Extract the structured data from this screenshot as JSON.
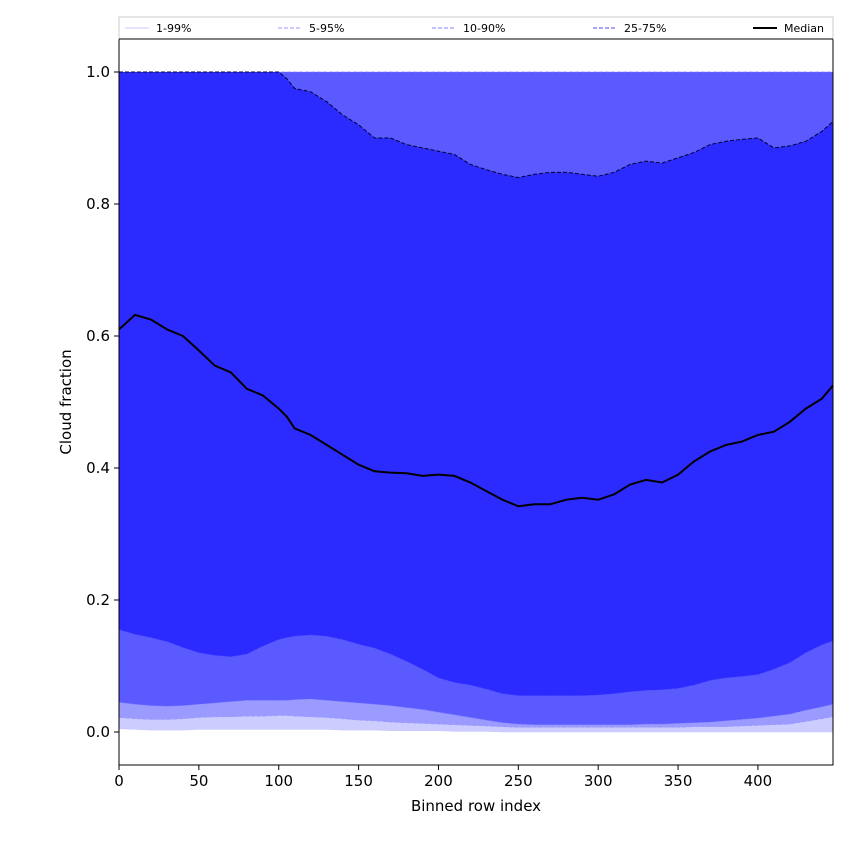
{
  "chart_data": {
    "type": "area",
    "xlabel": "Binned row index",
    "ylabel": "Cloud fraction",
    "xlim": [
      0,
      447
    ],
    "ylim": [
      -0.05,
      1.05
    ],
    "xticks": [
      0,
      50,
      100,
      150,
      200,
      250,
      300,
      350,
      400
    ],
    "yticks": [
      0.0,
      0.2,
      0.4,
      0.6,
      0.8,
      1.0
    ],
    "xtick_labels": [
      "0",
      "50",
      "100",
      "150",
      "200",
      "250",
      "300",
      "350",
      "400"
    ],
    "ytick_labels": [
      "0.0",
      "0.2",
      "0.4",
      "0.6",
      "0.8",
      "1.0"
    ],
    "grid": false,
    "legend_position": "top",
    "x": [
      0,
      10,
      20,
      30,
      40,
      50,
      60,
      70,
      80,
      90,
      100,
      105,
      110,
      120,
      130,
      140,
      150,
      160,
      170,
      180,
      190,
      200,
      210,
      220,
      230,
      240,
      250,
      260,
      270,
      280,
      290,
      300,
      310,
      320,
      330,
      340,
      350,
      360,
      370,
      380,
      390,
      400,
      410,
      420,
      430,
      440,
      447
    ],
    "bands": [
      {
        "name": "1-99%",
        "color": "#ccccff",
        "lower": [
          0.005,
          0.004,
          0.003,
          0.003,
          0.003,
          0.004,
          0.004,
          0.004,
          0.004,
          0.004,
          0.004,
          0.004,
          0.004,
          0.004,
          0.004,
          0.003,
          0.003,
          0.003,
          0.002,
          0.002,
          0.002,
          0.002,
          0.001,
          0.001,
          0.001,
          0.0,
          0.0,
          0.0,
          0.0,
          0.0,
          0.0,
          0.0,
          0.0,
          0.0,
          0.0,
          0.0,
          0.0,
          0.0,
          0.0,
          0.0,
          0.0,
          0.0,
          0.0,
          0.0,
          0.0,
          0.0,
          0.0
        ],
        "upper": [
          1.0,
          1.0,
          1.0,
          1.0,
          1.0,
          1.0,
          1.0,
          1.0,
          1.0,
          1.0,
          1.0,
          1.0,
          1.0,
          1.0,
          1.0,
          1.0,
          1.0,
          1.0,
          1.0,
          1.0,
          1.0,
          1.0,
          1.0,
          1.0,
          1.0,
          1.0,
          1.0,
          1.0,
          1.0,
          1.0,
          1.0,
          1.0,
          1.0,
          1.0,
          1.0,
          1.0,
          1.0,
          1.0,
          1.0,
          1.0,
          1.0,
          1.0,
          1.0,
          1.0,
          1.0,
          1.0,
          1.0
        ]
      },
      {
        "name": "5-95%",
        "color": "#9a9aff",
        "lower": [
          0.022,
          0.02,
          0.019,
          0.019,
          0.02,
          0.022,
          0.023,
          0.023,
          0.024,
          0.024,
          0.025,
          0.025,
          0.024,
          0.023,
          0.022,
          0.02,
          0.018,
          0.017,
          0.015,
          0.014,
          0.013,
          0.012,
          0.011,
          0.01,
          0.009,
          0.008,
          0.007,
          0.007,
          0.007,
          0.007,
          0.007,
          0.007,
          0.007,
          0.007,
          0.007,
          0.007,
          0.007,
          0.008,
          0.008,
          0.008,
          0.009,
          0.01,
          0.011,
          0.012,
          0.016,
          0.02,
          0.023
        ],
        "upper": [
          1.0,
          1.0,
          1.0,
          1.0,
          1.0,
          1.0,
          1.0,
          1.0,
          1.0,
          1.0,
          1.0,
          1.0,
          1.0,
          1.0,
          1.0,
          1.0,
          1.0,
          1.0,
          1.0,
          1.0,
          1.0,
          1.0,
          1.0,
          1.0,
          1.0,
          1.0,
          1.0,
          1.0,
          1.0,
          1.0,
          1.0,
          1.0,
          1.0,
          1.0,
          1.0,
          1.0,
          1.0,
          1.0,
          1.0,
          1.0,
          1.0,
          1.0,
          1.0,
          1.0,
          1.0,
          1.0,
          1.0
        ]
      },
      {
        "name": "10-90%",
        "color": "#5a5aff",
        "lower": [
          0.045,
          0.042,
          0.04,
          0.039,
          0.04,
          0.042,
          0.044,
          0.046,
          0.048,
          0.048,
          0.048,
          0.048,
          0.049,
          0.05,
          0.048,
          0.046,
          0.044,
          0.042,
          0.04,
          0.037,
          0.034,
          0.03,
          0.026,
          0.022,
          0.018,
          0.014,
          0.012,
          0.011,
          0.011,
          0.011,
          0.011,
          0.011,
          0.011,
          0.011,
          0.012,
          0.012,
          0.013,
          0.014,
          0.015,
          0.017,
          0.019,
          0.021,
          0.024,
          0.027,
          0.033,
          0.038,
          0.042
        ],
        "upper": [
          1.0,
          1.0,
          1.0,
          1.0,
          1.0,
          1.0,
          1.0,
          1.0,
          1.0,
          1.0,
          1.0,
          1.0,
          1.0,
          1.0,
          1.0,
          1.0,
          1.0,
          1.0,
          1.0,
          1.0,
          1.0,
          1.0,
          1.0,
          1.0,
          1.0,
          1.0,
          1.0,
          1.0,
          1.0,
          1.0,
          1.0,
          1.0,
          1.0,
          1.0,
          1.0,
          1.0,
          1.0,
          1.0,
          1.0,
          1.0,
          1.0,
          1.0,
          1.0,
          1.0,
          1.0,
          1.0,
          1.0
        ]
      },
      {
        "name": "25-75%",
        "color": "#2b2bff",
        "lower": [
          0.155,
          0.148,
          0.143,
          0.137,
          0.128,
          0.12,
          0.116,
          0.114,
          0.118,
          0.13,
          0.14,
          0.143,
          0.145,
          0.147,
          0.145,
          0.14,
          0.133,
          0.127,
          0.118,
          0.107,
          0.095,
          0.082,
          0.075,
          0.071,
          0.065,
          0.058,
          0.055,
          0.055,
          0.055,
          0.055,
          0.055,
          0.056,
          0.058,
          0.061,
          0.063,
          0.064,
          0.066,
          0.071,
          0.078,
          0.082,
          0.084,
          0.087,
          0.095,
          0.105,
          0.12,
          0.132,
          0.138
        ],
        "upper": [
          1.0,
          1.0,
          1.0,
          1.0,
          1.0,
          1.0,
          1.0,
          1.0,
          1.0,
          1.0,
          1.0,
          0.99,
          0.975,
          0.97,
          0.955,
          0.935,
          0.92,
          0.9,
          0.9,
          0.89,
          0.885,
          0.88,
          0.875,
          0.86,
          0.852,
          0.845,
          0.84,
          0.845,
          0.848,
          0.848,
          0.845,
          0.842,
          0.848,
          0.86,
          0.865,
          0.862,
          0.87,
          0.878,
          0.89,
          0.895,
          0.898,
          0.9,
          0.885,
          0.888,
          0.895,
          0.91,
          0.925
        ]
      }
    ],
    "series": [
      {
        "name": "Median",
        "color": "#000000",
        "values": [
          0.61,
          0.632,
          0.625,
          0.61,
          0.6,
          0.578,
          0.555,
          0.545,
          0.52,
          0.51,
          0.49,
          0.478,
          0.46,
          0.45,
          0.435,
          0.42,
          0.405,
          0.395,
          0.393,
          0.392,
          0.388,
          0.39,
          0.388,
          0.378,
          0.365,
          0.352,
          0.342,
          0.345,
          0.345,
          0.352,
          0.355,
          0.352,
          0.36,
          0.375,
          0.382,
          0.378,
          0.39,
          0.41,
          0.425,
          0.435,
          0.44,
          0.45,
          0.455,
          0.47,
          0.49,
          0.505,
          0.525
        ]
      }
    ],
    "legend": [
      {
        "label": "1-99%",
        "color": "#c8c8ff",
        "style": "solid"
      },
      {
        "label": "5-95%",
        "color": "#9a9aff",
        "style": "dashed"
      },
      {
        "label": "10-90%",
        "color": "#8080ff",
        "style": "dashed"
      },
      {
        "label": "25-75%",
        "color": "#4d4dff",
        "style": "dashed"
      },
      {
        "label": "Median",
        "color": "#000000",
        "style": "solid"
      }
    ]
  }
}
